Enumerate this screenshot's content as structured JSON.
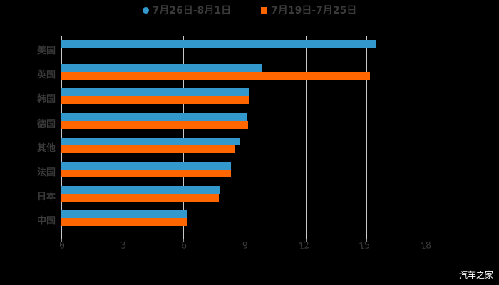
{
  "chart_data": {
    "type": "bar",
    "orientation": "horizontal",
    "title": "",
    "xlabel": "",
    "ylabel": "",
    "xlim": [
      0,
      18
    ],
    "xticks": [
      0,
      3,
      6,
      9,
      12,
      15,
      18
    ],
    "grid": true,
    "legend_position": "top",
    "categories": [
      "美国",
      "英国",
      "韩国",
      "德国",
      "其他",
      "法国",
      "日本",
      "中国"
    ],
    "series": [
      {
        "name": "7月26日-8月1日",
        "color": "#3399cc",
        "marker": "circle",
        "values": [
          15.45,
          9.86,
          9.22,
          9.12,
          8.77,
          8.35,
          7.79,
          6.18
        ]
      },
      {
        "name": "7月19日-7月25日",
        "color": "#ff6600",
        "marker": "square",
        "values": [
          null,
          15.17,
          9.22,
          9.19,
          8.53,
          8.35,
          7.75,
          6.18
        ]
      }
    ]
  },
  "legend": {
    "items": [
      {
        "label": "7月26日-8月1日",
        "color": "#3399cc"
      },
      {
        "label": "7月19日-7月25日",
        "color": "#ff6600"
      }
    ]
  },
  "watermark": "汽车之家"
}
